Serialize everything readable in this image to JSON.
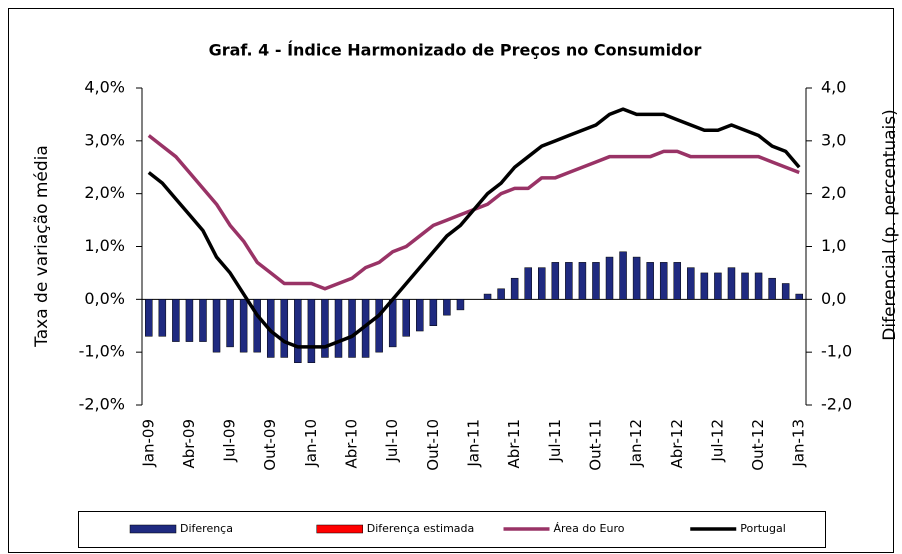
{
  "chart_data": {
    "type": "bar_line",
    "title": "Graf. 4 - Índice Harmonizado de Preços no Consumidor",
    "y_label": "Taxa de variação média",
    "y2_label": "Diferencial (p. percentuais)",
    "categories": [
      "Jan-09",
      null,
      null,
      "Abr-09",
      null,
      null,
      "Jul-09",
      null,
      null,
      "Out-09",
      null,
      null,
      "Jan-10",
      null,
      null,
      "Abr-10",
      null,
      null,
      "Jul-10",
      null,
      null,
      "Out-10",
      null,
      null,
      "Jan-11",
      null,
      null,
      "Abr-11",
      null,
      null,
      "Jul-11",
      null,
      null,
      "Out-11",
      null,
      null,
      "Jan-12",
      null,
      null,
      "Abr-12",
      null,
      null,
      "Jul-12",
      null,
      null,
      "Out-12",
      null,
      null,
      "Jan-13"
    ],
    "ylim": [
      -2,
      4
    ],
    "yticks": [
      {
        "value": -2,
        "label": "-2,0%"
      },
      {
        "value": -1,
        "label": "-1,0%"
      },
      {
        "value": 0,
        "label": "0,0%"
      },
      {
        "value": 1,
        "label": "1,0%"
      },
      {
        "value": 2,
        "label": "2,0%"
      },
      {
        "value": 3,
        "label": "3,0%"
      },
      {
        "value": 4,
        "label": "4,0%"
      }
    ],
    "y2lim": [
      -2,
      4
    ],
    "y2ticks": [
      {
        "value": -2,
        "label": "-2,0"
      },
      {
        "value": -1,
        "label": "-1,0"
      },
      {
        "value": 0,
        "label": "0,0"
      },
      {
        "value": 1,
        "label": "1,0"
      },
      {
        "value": 2,
        "label": "2,0"
      },
      {
        "value": 3,
        "label": "3,0"
      },
      {
        "value": 4,
        "label": "4,0"
      }
    ],
    "legend": "bottom",
    "series": [
      {
        "name": "Diferença",
        "type": "bar",
        "axis": "y2",
        "color": "#1f2a80",
        "values": [
          -0.7,
          -0.7,
          -0.8,
          -0.8,
          -0.8,
          -1.0,
          -0.9,
          -1.0,
          -1.0,
          -1.1,
          -1.1,
          -1.2,
          -1.2,
          -1.1,
          -1.1,
          -1.1,
          -1.1,
          -1.0,
          -0.9,
          -0.7,
          -0.6,
          -0.5,
          -0.3,
          -0.2,
          0.0,
          0.1,
          0.2,
          0.4,
          0.6,
          0.6,
          0.7,
          0.7,
          0.7,
          0.7,
          0.8,
          0.9,
          0.8,
          0.7,
          0.7,
          0.7,
          0.6,
          0.5,
          0.5,
          0.6,
          0.5,
          0.5,
          0.4,
          0.3,
          0.1
        ]
      },
      {
        "name": "Diferença estimada",
        "type": "bar",
        "axis": "y2",
        "color": "#ff0000",
        "values": [
          null,
          null,
          null,
          null,
          null,
          null,
          null,
          null,
          null,
          null,
          null,
          null,
          null,
          null,
          null,
          null,
          null,
          null,
          null,
          null,
          null,
          null,
          null,
          null,
          null,
          null,
          null,
          null,
          null,
          null,
          null,
          null,
          null,
          null,
          null,
          null,
          null,
          null,
          null,
          null,
          null,
          null,
          null,
          null,
          null,
          null,
          null,
          null,
          null
        ]
      },
      {
        "name": "Área do Euro",
        "type": "line",
        "color": "#993366",
        "values": [
          3.1,
          2.9,
          2.7,
          2.4,
          2.1,
          1.8,
          1.4,
          1.1,
          0.7,
          0.5,
          0.3,
          0.3,
          0.3,
          0.2,
          0.3,
          0.4,
          0.6,
          0.7,
          0.9,
          1.0,
          1.2,
          1.4,
          1.5,
          1.6,
          1.7,
          1.8,
          2.0,
          2.1,
          2.1,
          2.3,
          2.3,
          2.4,
          2.5,
          2.6,
          2.7,
          2.7,
          2.7,
          2.7,
          2.8,
          2.8,
          2.7,
          2.7,
          2.7,
          2.7,
          2.7,
          2.7,
          2.6,
          2.5,
          2.4
        ]
      },
      {
        "name": "Portugal",
        "type": "line",
        "color": "#000000",
        "values": [
          2.4,
          2.2,
          1.9,
          1.6,
          1.3,
          0.8,
          0.5,
          0.1,
          -0.3,
          -0.6,
          -0.8,
          -0.9,
          -0.9,
          -0.9,
          -0.8,
          -0.7,
          -0.5,
          -0.3,
          0.0,
          0.3,
          0.6,
          0.9,
          1.2,
          1.4,
          1.7,
          2.0,
          2.2,
          2.5,
          2.7,
          2.9,
          3.0,
          3.1,
          3.2,
          3.3,
          3.5,
          3.6,
          3.5,
          3.5,
          3.5,
          3.4,
          3.3,
          3.2,
          3.2,
          3.3,
          3.2,
          3.1,
          2.9,
          2.8,
          2.5
        ]
      }
    ]
  }
}
